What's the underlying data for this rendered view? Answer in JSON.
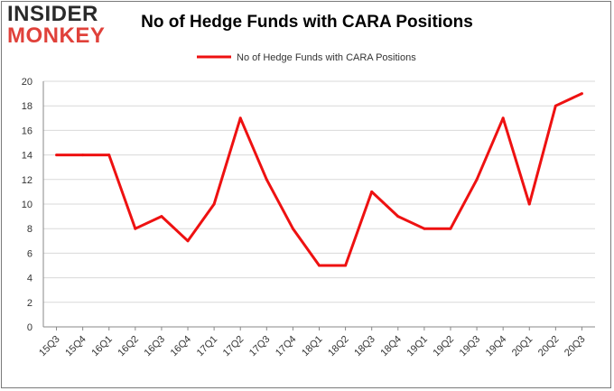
{
  "logo": {
    "line1": "INSIDER",
    "line2": "MONKEY"
  },
  "colors": {
    "series": "#ee1111",
    "grid": "#d9d9d9",
    "axis": "#888888",
    "logo_dark": "#2a2a2a",
    "logo_red": "#e0413a"
  },
  "chart_data": {
    "type": "line",
    "title": "No of Hedge Funds with CARA Positions",
    "xlabel": "",
    "ylabel": "",
    "categories": [
      "15Q3",
      "15Q4",
      "16Q1",
      "16Q2",
      "16Q3",
      "16Q4",
      "17Q1",
      "17Q2",
      "17Q3",
      "17Q4",
      "18Q1",
      "18Q2",
      "18Q3",
      "18Q4",
      "19Q1",
      "19Q2",
      "19Q3",
      "19Q4",
      "20Q1",
      "20Q2",
      "20Q3"
    ],
    "series": [
      {
        "name": "No of Hedge Funds with CARA Positions",
        "values": [
          14,
          14,
          14,
          8,
          9,
          7,
          10,
          17,
          12,
          8,
          5,
          5,
          11,
          9,
          8,
          8,
          12,
          17,
          10,
          18,
          19
        ]
      }
    ],
    "ylim": [
      0,
      20
    ],
    "yticks": [
      0,
      2,
      4,
      6,
      8,
      10,
      12,
      14,
      16,
      18,
      20
    ],
    "grid": true,
    "legend_position": "top-center"
  }
}
